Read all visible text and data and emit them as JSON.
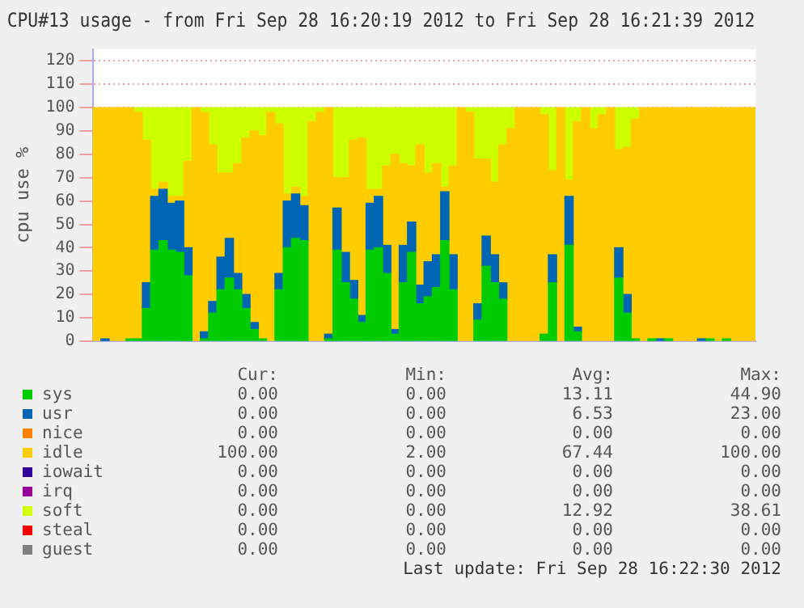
{
  "chart_data": {
    "type": "bar",
    "title": "CPU#13 usage - from Fri Sep 28 16:20:19 2012 to Fri Sep 28 16:21:39 2012",
    "ylabel": "cpu use %",
    "categories": [
      null,
      null,
      null,
      null,
      null,
      null,
      null,
      null,
      null,
      null,
      null,
      null,
      null,
      null,
      null,
      null,
      null,
      null,
      null,
      null,
      null,
      null,
      null,
      null,
      null,
      null,
      null,
      null,
      null,
      null,
      null,
      null,
      null,
      null,
      null,
      null,
      null,
      null,
      null,
      null,
      null,
      null,
      null,
      null,
      null,
      null,
      null,
      null,
      null,
      null,
      null,
      null,
      null,
      null,
      null,
      null,
      null,
      null,
      null,
      null,
      null,
      null,
      null,
      null,
      null,
      null,
      null,
      null,
      null,
      null,
      null,
      null,
      null,
      null,
      null,
      null,
      null,
      null,
      null,
      null
    ],
    "stacked": true,
    "ylim": [
      0,
      125
    ],
    "yticks": [
      0,
      10,
      20,
      30,
      40,
      50,
      60,
      70,
      80,
      90,
      100,
      110,
      120
    ],
    "grid": "y",
    "tick_labels": "y",
    "legend": "bottom",
    "series": [
      {
        "name": "sys",
        "color": "#00cc00",
        "values": [
          0,
          0,
          0,
          0,
          1,
          1,
          14,
          39,
          43,
          39,
          38,
          28,
          0,
          1,
          12,
          22,
          27,
          22,
          14,
          5,
          1,
          0,
          22,
          40,
          44,
          43,
          0,
          0,
          1,
          39,
          25,
          18,
          8,
          39,
          40,
          29,
          3,
          25,
          38,
          16,
          19,
          23,
          43,
          22,
          0,
          0,
          9,
          32,
          25,
          18,
          0,
          0,
          0,
          0,
          3,
          25,
          0,
          41,
          4,
          0,
          0,
          0,
          0,
          27,
          12,
          1,
          0,
          1,
          0,
          1,
          0,
          0,
          0,
          0,
          1,
          0,
          1,
          0,
          0,
          0
        ]
      },
      {
        "name": "usr",
        "color": "#0066b3",
        "values": [
          0,
          1,
          0,
          0,
          0,
          0,
          11,
          23,
          22,
          20,
          22,
          12,
          0,
          3,
          5,
          14,
          17,
          7,
          6,
          3,
          0,
          0,
          7,
          20,
          19,
          15,
          0,
          0,
          2,
          18,
          13,
          8,
          3,
          20,
          22,
          12,
          2,
          16,
          13,
          8,
          15,
          14,
          21,
          15,
          0,
          0,
          7,
          13,
          12,
          7,
          0,
          0,
          0,
          0,
          0,
          12,
          0,
          21,
          2,
          0,
          0,
          0,
          0,
          13,
          8,
          0,
          0,
          0,
          1,
          0,
          0,
          0,
          0,
          1,
          0,
          0,
          0,
          0,
          0,
          0
        ]
      },
      {
        "name": "nice",
        "color": "#ff8000",
        "values": [
          0,
          0,
          0,
          0,
          0,
          0,
          0,
          0,
          0,
          0,
          0,
          0,
          0,
          0,
          0,
          0,
          0,
          0,
          0,
          0,
          0,
          0,
          0,
          0,
          0,
          0,
          0,
          0,
          0,
          0,
          0,
          0,
          0,
          0,
          0,
          0,
          0,
          0,
          0,
          0,
          0,
          0,
          0,
          0,
          0,
          0,
          0,
          0,
          0,
          0,
          0,
          0,
          0,
          0,
          0,
          0,
          0,
          0,
          0,
          0,
          0,
          0,
          0,
          0,
          0,
          0,
          0,
          0,
          0,
          0,
          0,
          0,
          0,
          0,
          0,
          0,
          0,
          0,
          0,
          0
        ]
      },
      {
        "name": "idle",
        "color": "#ffcc00",
        "values": [
          100,
          99,
          100,
          100,
          99,
          97,
          61,
          3,
          3,
          3,
          2,
          37,
          100,
          94,
          67,
          36,
          28,
          47,
          67,
          82,
          87,
          98,
          64,
          3,
          3,
          4,
          94,
          98,
          97,
          13,
          32,
          60,
          76,
          6,
          3,
          34,
          75,
          35,
          24,
          60,
          38,
          39,
          2,
          38,
          100,
          98,
          62,
          33,
          31,
          59,
          91,
          100,
          100,
          100,
          94,
          36,
          100,
          7,
          88,
          100,
          91,
          97,
          100,
          42,
          63,
          94,
          100,
          99,
          99,
          99,
          100,
          100,
          100,
          99,
          99,
          100,
          99,
          100,
          100,
          100
        ]
      },
      {
        "name": "iowait",
        "color": "#330099",
        "values": [
          0,
          0,
          0,
          0,
          0,
          0,
          0,
          0,
          0,
          0,
          0,
          0,
          0,
          0,
          0,
          0,
          0,
          0,
          0,
          0,
          0,
          0,
          0,
          0,
          0,
          0,
          0,
          0,
          0,
          0,
          0,
          0,
          0,
          0,
          0,
          0,
          0,
          0,
          0,
          0,
          0,
          0,
          0,
          0,
          0,
          0,
          0,
          0,
          0,
          0,
          0,
          0,
          0,
          0,
          0,
          0,
          0,
          0,
          0,
          0,
          0,
          0,
          0,
          0,
          0,
          0,
          0,
          0,
          0,
          0,
          0,
          0,
          0,
          0,
          0,
          0,
          0,
          0,
          0,
          0
        ]
      },
      {
        "name": "irq",
        "color": "#990099",
        "values": [
          0,
          0,
          0,
          0,
          0,
          0,
          0,
          0,
          0,
          0,
          0,
          0,
          0,
          0,
          0,
          0,
          0,
          0,
          0,
          0,
          0,
          0,
          0,
          0,
          0,
          0,
          0,
          0,
          0,
          0,
          0,
          0,
          0,
          0,
          0,
          0,
          0,
          0,
          0,
          0,
          0,
          0,
          0,
          0,
          0,
          0,
          0,
          0,
          0,
          0,
          0,
          0,
          0,
          0,
          0,
          0,
          0,
          0,
          0,
          0,
          0,
          0,
          0,
          0,
          0,
          0,
          0,
          0,
          0,
          0,
          0,
          0,
          0,
          0,
          0,
          0,
          0,
          0,
          0,
          0
        ]
      },
      {
        "name": "soft",
        "color": "#ccff00",
        "values": [
          0,
          0,
          0,
          0,
          0,
          2,
          14,
          35,
          32,
          38,
          38,
          23,
          0,
          2,
          16,
          28,
          28,
          24,
          13,
          10,
          12,
          2,
          7,
          37,
          34,
          38,
          6,
          2,
          0,
          30,
          30,
          14,
          13,
          35,
          35,
          25,
          20,
          24,
          25,
          16,
          28,
          24,
          34,
          25,
          0,
          2,
          22,
          22,
          32,
          16,
          9,
          0,
          0,
          0,
          3,
          27,
          0,
          31,
          6,
          0,
          9,
          3,
          0,
          18,
          17,
          5,
          0,
          0,
          0,
          0,
          0,
          0,
          0,
          0,
          0,
          0,
          0,
          0,
          0,
          0
        ]
      },
      {
        "name": "steal",
        "color": "#ff0000",
        "values": [
          0,
          0,
          0,
          0,
          0,
          0,
          0,
          0,
          0,
          0,
          0,
          0,
          0,
          0,
          0,
          0,
          0,
          0,
          0,
          0,
          0,
          0,
          0,
          0,
          0,
          0,
          0,
          0,
          0,
          0,
          0,
          0,
          0,
          0,
          0,
          0,
          0,
          0,
          0,
          0,
          0,
          0,
          0,
          0,
          0,
          0,
          0,
          0,
          0,
          0,
          0,
          0,
          0,
          0,
          0,
          0,
          0,
          0,
          0,
          0,
          0,
          0,
          0,
          0,
          0,
          0,
          0,
          0,
          0,
          0,
          0,
          0,
          0,
          0,
          0,
          0,
          0,
          0,
          0,
          0
        ]
      },
      {
        "name": "guest",
        "color": "#808080",
        "values": [
          0,
          0,
          0,
          0,
          0,
          0,
          0,
          0,
          0,
          0,
          0,
          0,
          0,
          0,
          0,
          0,
          0,
          0,
          0,
          0,
          0,
          0,
          0,
          0,
          0,
          0,
          0,
          0,
          0,
          0,
          0,
          0,
          0,
          0,
          0,
          0,
          0,
          0,
          0,
          0,
          0,
          0,
          0,
          0,
          0,
          0,
          0,
          0,
          0,
          0,
          0,
          0,
          0,
          0,
          0,
          0,
          0,
          0,
          0,
          0,
          0,
          0,
          0,
          0,
          0,
          0,
          0,
          0,
          0,
          0,
          0,
          0,
          0,
          0,
          0,
          0,
          0,
          0,
          0,
          0
        ]
      }
    ],
    "annotations": [
      "Cur:",
      "Min:",
      "Avg:",
      "Max:",
      "0.00",
      "0.00",
      "13.11",
      "44.90",
      "0.00",
      "0.00",
      "6.53",
      "23.00",
      "0.00",
      "0.00",
      "0.00",
      "0.00",
      "100.00",
      "2.00",
      "67.44",
      "100.00",
      "0.00",
      "0.00",
      "0.00",
      "0.00",
      "0.00",
      "0.00",
      "0.00",
      "0.00",
      "0.00",
      "0.00",
      "12.92",
      "38.61",
      "0.00",
      "0.00",
      "0.00",
      "0.00",
      "0.00",
      "0.00",
      "0.00",
      "0.00",
      "Last update: Fri Sep 28 16:22:30 2012"
    ]
  }
}
